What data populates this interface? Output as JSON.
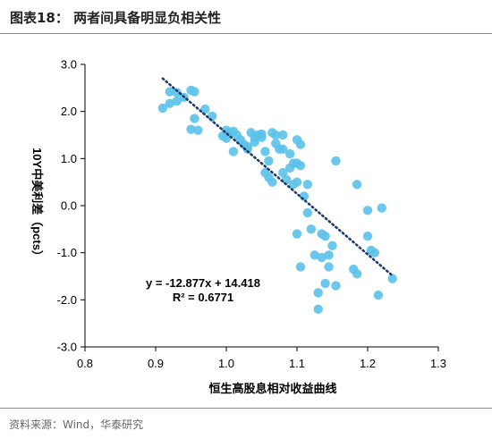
{
  "header": {
    "title": "图表18：  两者间具备明显负相关性"
  },
  "footer": {
    "source": "资料来源：Wind，华泰研究"
  },
  "colors": {
    "points": "#5bc2ea",
    "trendline": "#1f3a6b",
    "axis": "#000000",
    "rule": "#8a8a8a"
  },
  "chart_data": {
    "type": "scatter",
    "xlabel": "恒生高股息相对收益曲线",
    "ylabel": "10Y中美利差（pcts）",
    "xlim": [
      0.8,
      1.3
    ],
    "ylim": [
      -3.0,
      3.0
    ],
    "x_ticks": [
      "0.8",
      "0.9",
      "1.0",
      "1.1",
      "1.2",
      "1.3"
    ],
    "y_ticks": [
      "3.0",
      "2.0",
      "1.0",
      "0.0",
      "-1.0",
      "-2.0",
      "-3.0"
    ],
    "grid": false,
    "trendline": {
      "slope": -12.877,
      "intercept": 14.418,
      "x_range": [
        0.91,
        1.235
      ],
      "style": "dotted"
    },
    "annotations": [
      "y = -12.877x + 14.418",
      "R² = 0.6771"
    ],
    "points": [
      [
        0.91,
        2.07
      ],
      [
        0.92,
        2.42
      ],
      [
        0.92,
        2.17
      ],
      [
        0.93,
        2.4
      ],
      [
        0.93,
        2.22
      ],
      [
        0.94,
        2.3
      ],
      [
        0.95,
        2.45
      ],
      [
        0.955,
        2.42
      ],
      [
        0.955,
        1.85
      ],
      [
        0.95,
        1.62
      ],
      [
        0.96,
        1.6
      ],
      [
        0.97,
        2.05
      ],
      [
        0.98,
        1.9
      ],
      [
        0.995,
        1.48
      ],
      [
        1.0,
        1.6
      ],
      [
        1.0,
        1.43
      ],
      [
        1.005,
        1.55
      ],
      [
        1.01,
        1.58
      ],
      [
        1.01,
        1.15
      ],
      [
        1.015,
        1.5
      ],
      [
        1.02,
        1.4
      ],
      [
        1.025,
        1.3
      ],
      [
        1.03,
        1.25
      ],
      [
        1.03,
        1.2
      ],
      [
        1.035,
        1.55
      ],
      [
        1.04,
        1.45
      ],
      [
        1.04,
        1.35
      ],
      [
        1.045,
        1.5
      ],
      [
        1.05,
        1.52
      ],
      [
        1.05,
        1.45
      ],
      [
        1.055,
        1.15
      ],
      [
        1.055,
        0.7
      ],
      [
        1.06,
        0.6
      ],
      [
        1.06,
        0.95
      ],
      [
        1.065,
        0.5
      ],
      [
        1.065,
        1.55
      ],
      [
        1.07,
        1.5
      ],
      [
        1.07,
        1.32
      ],
      [
        1.075,
        1.2
      ],
      [
        1.08,
        1.5
      ],
      [
        1.08,
        1.2
      ],
      [
        1.08,
        0.7
      ],
      [
        1.085,
        0.55
      ],
      [
        1.09,
        1.1
      ],
      [
        1.09,
        0.8
      ],
      [
        1.095,
        0.9
      ],
      [
        1.095,
        0.45
      ],
      [
        1.1,
        1.4
      ],
      [
        1.1,
        0.9
      ],
      [
        1.1,
        0.5
      ],
      [
        1.105,
        1.3
      ],
      [
        1.105,
        0.85
      ],
      [
        1.11,
        0.2
      ],
      [
        1.115,
        0.45
      ],
      [
        1.115,
        -0.15
      ],
      [
        1.1,
        -0.6
      ],
      [
        1.105,
        -1.3
      ],
      [
        1.12,
        -0.5
      ],
      [
        1.125,
        -1.05
      ],
      [
        1.13,
        -1.85
      ],
      [
        1.13,
        -2.2
      ],
      [
        1.135,
        -1.1
      ],
      [
        1.14,
        -0.65
      ],
      [
        1.145,
        -1.05
      ],
      [
        1.145,
        -1.3
      ],
      [
        1.15,
        -0.85
      ],
      [
        1.155,
        0.95
      ],
      [
        1.155,
        -1.7
      ],
      [
        1.135,
        -0.6
      ],
      [
        1.14,
        -1.65
      ],
      [
        1.18,
        -1.35
      ],
      [
        1.185,
        -1.45
      ],
      [
        1.185,
        0.45
      ],
      [
        1.2,
        -0.1
      ],
      [
        1.2,
        -0.65
      ],
      [
        1.205,
        -0.95
      ],
      [
        1.21,
        -1.0
      ],
      [
        1.215,
        -1.9
      ],
      [
        1.22,
        -0.05
      ],
      [
        1.235,
        -1.55
      ]
    ]
  }
}
